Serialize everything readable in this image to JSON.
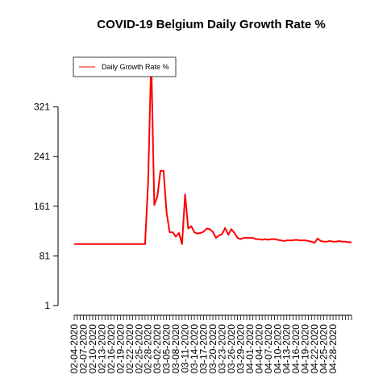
{
  "chart_data": {
    "type": "line",
    "title": "COVID-19 Belgium Daily Growth Rate %",
    "xlabel": "",
    "ylabel": "",
    "ylim": [
      1,
      401
    ],
    "y_ticks": [
      1,
      81,
      161,
      241,
      321
    ],
    "x_tick_labels": [
      "02-04-2020",
      "02-07-2020",
      "02-10-2020",
      "02-13-2020",
      "02-16-2020",
      "02-19-2020",
      "02-22-2020",
      "02-25-2020",
      "02-28-2020",
      "03-02-2020",
      "03-05-2020",
      "03-08-2020",
      "03-11-2020",
      "03-14-2020",
      "03-17-2020",
      "03-20-2020",
      "03-23-2020",
      "03-26-2020",
      "03-29-2020",
      "04-01-2020",
      "04-04-2020",
      "04-07-2020",
      "04-10-2020",
      "04-13-2020",
      "04-16-2020",
      "04-19-2020",
      "04-22-2020",
      "04-25-2020",
      "04-28-2020"
    ],
    "legend": {
      "position": "top-left",
      "label": "Daily Growth Rate %"
    },
    "series": [
      {
        "name": "Daily Growth Rate %",
        "color": "#ff0000",
        "start_date": "2020-02-04",
        "values": [
          100,
          100,
          100,
          100,
          100,
          100,
          100,
          100,
          100,
          100,
          100,
          100,
          100,
          100,
          100,
          100,
          100,
          100,
          100,
          100,
          100,
          100,
          100,
          100,
          200,
          400,
          163,
          177,
          218,
          218,
          150,
          119,
          119,
          112,
          118,
          100,
          180,
          125,
          129,
          119,
          117,
          118,
          120,
          125,
          124,
          120,
          110,
          114,
          116,
          126,
          115,
          124,
          118,
          110,
          108,
          110,
          110,
          110,
          110,
          108,
          108,
          107,
          108,
          107,
          108,
          108,
          107,
          106,
          105,
          106,
          106,
          106,
          107,
          106,
          106,
          106,
          105,
          104,
          102,
          109,
          105,
          104,
          104,
          105,
          104,
          104,
          105,
          104,
          104,
          103,
          103
        ]
      }
    ]
  }
}
